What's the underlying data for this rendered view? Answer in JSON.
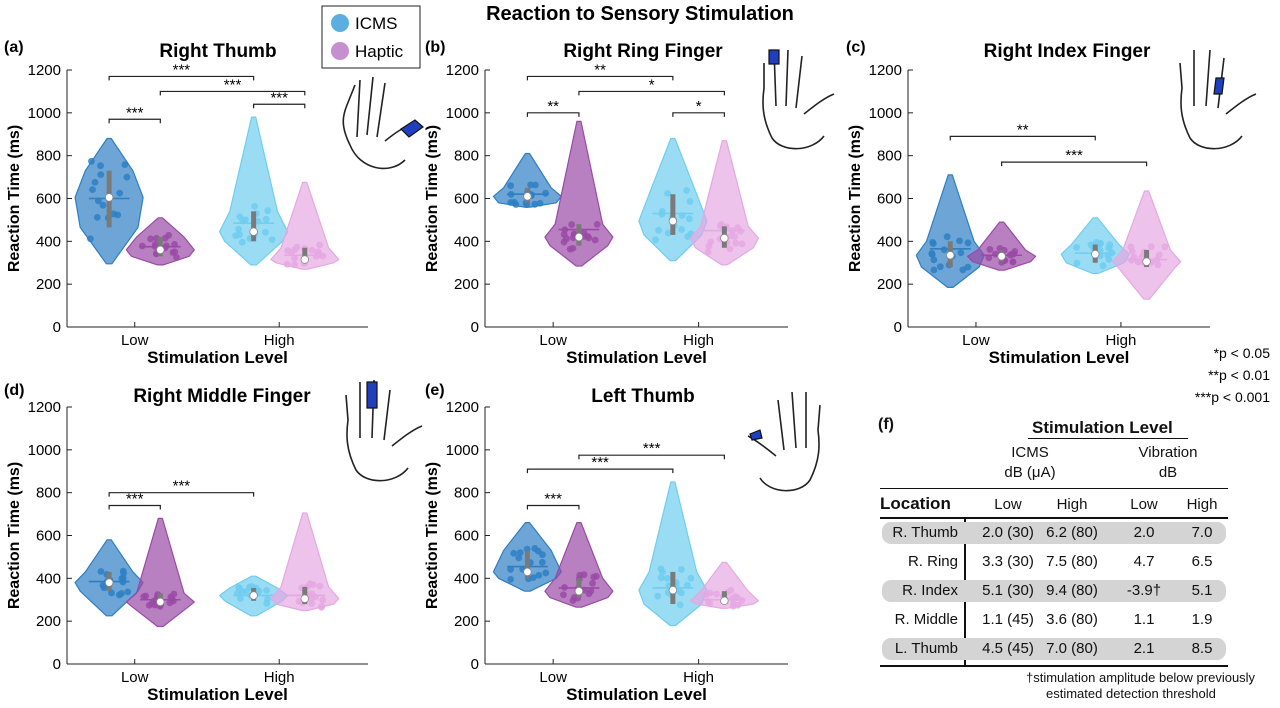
{
  "figure": {
    "title": "Reaction to Sensory Stimulation",
    "legend": [
      {
        "label": "ICMS",
        "color": "#5aaee0"
      },
      {
        "label": "Haptic",
        "color": "#c690d0"
      }
    ],
    "significance_key": [
      "*p < 0.05",
      "**p < 0.01",
      "***p < 0.001"
    ]
  },
  "colors": {
    "icms_low": "#2e7fc4",
    "icms_high": "#6fcdf0",
    "haptic_low": "#9a4aa6",
    "haptic_high": "#e5a8e3"
  },
  "chart_data": [
    {
      "type": "violin",
      "panel": "(a)",
      "title": "Right Thumb",
      "xlabel": "Stimulation Level",
      "ylabel": "Reaction Time (ms)",
      "categories": [
        "Low",
        "High"
      ],
      "ylim": [
        0,
        1200
      ],
      "yticks": [
        0,
        200,
        400,
        600,
        800,
        1000,
        1200
      ],
      "series": [
        {
          "name": "ICMS",
          "groups": [
            {
              "level": "Low",
              "min": 295,
              "q1": 465,
              "median": 605,
              "q3": 730,
              "max": 880,
              "mean": 600
            },
            {
              "level": "High",
              "min": 290,
              "q1": 400,
              "median": 445,
              "q3": 540,
              "max": 980,
              "mean": 485
            }
          ]
        },
        {
          "name": "Haptic",
          "groups": [
            {
              "level": "Low",
              "min": 290,
              "q1": 330,
              "median": 360,
              "q3": 420,
              "max": 510,
              "mean": 375
            },
            {
              "level": "High",
              "min": 270,
              "q1": 300,
              "median": 315,
              "q3": 370,
              "max": 675,
              "mean": 335
            }
          ]
        }
      ],
      "brackets": [
        {
          "from": "ICMS-Low",
          "to": "ICMS-High",
          "y": 1170,
          "label": "***"
        },
        {
          "from": "Haptic-Low",
          "to": "Haptic-High",
          "y": 1100,
          "label": "***"
        },
        {
          "from": "ICMS-Low",
          "to": "Haptic-Low",
          "y": 970,
          "label": "***"
        },
        {
          "from": "ICMS-High",
          "to": "Haptic-High",
          "y": 1040,
          "label": "***"
        }
      ]
    },
    {
      "type": "violin",
      "panel": "(b)",
      "title": "Right Ring Finger",
      "xlabel": "Stimulation Level",
      "ylabel": "Reaction Time (ms)",
      "categories": [
        "Low",
        "High"
      ],
      "ylim": [
        0,
        1200
      ],
      "yticks": [
        0,
        200,
        400,
        600,
        800,
        1000,
        1200
      ],
      "series": [
        {
          "name": "ICMS",
          "groups": [
            {
              "level": "Low",
              "min": 560,
              "q1": 580,
              "median": 610,
              "q3": 650,
              "max": 810,
              "mean": 620
            },
            {
              "level": "High",
              "min": 310,
              "q1": 430,
              "median": 495,
              "q3": 620,
              "max": 880,
              "mean": 530
            }
          ]
        },
        {
          "name": "Haptic",
          "groups": [
            {
              "level": "Low",
              "min": 285,
              "q1": 380,
              "median": 420,
              "q3": 480,
              "max": 960,
              "mean": 455
            },
            {
              "level": "High",
              "min": 290,
              "q1": 370,
              "median": 415,
              "q3": 470,
              "max": 870,
              "mean": 450
            }
          ]
        }
      ],
      "brackets": [
        {
          "from": "ICMS-Low",
          "to": "ICMS-High",
          "y": 1170,
          "label": "**"
        },
        {
          "from": "Haptic-Low",
          "to": "Haptic-High",
          "y": 1100,
          "label": "*"
        },
        {
          "from": "ICMS-Low",
          "to": "Haptic-Low",
          "y": 1000,
          "label": "**"
        },
        {
          "from": "ICMS-High",
          "to": "Haptic-High",
          "y": 1000,
          "label": "*"
        }
      ]
    },
    {
      "type": "violin",
      "panel": "(c)",
      "title": "Right Index Finger",
      "xlabel": "Stimulation Level",
      "ylabel": "Reaction Time (ms)",
      "categories": [
        "Low",
        "High"
      ],
      "ylim": [
        0,
        1200
      ],
      "yticks": [
        0,
        200,
        400,
        600,
        800,
        1000,
        1200
      ],
      "series": [
        {
          "name": "ICMS",
          "groups": [
            {
              "level": "Low",
              "min": 185,
              "q1": 280,
              "median": 335,
              "q3": 400,
              "max": 710,
              "mean": 365
            },
            {
              "level": "High",
              "min": 250,
              "q1": 300,
              "median": 340,
              "q3": 385,
              "max": 510,
              "mean": 345
            }
          ]
        },
        {
          "name": "Haptic",
          "groups": [
            {
              "level": "Low",
              "min": 265,
              "q1": 305,
              "median": 330,
              "q3": 360,
              "max": 490,
              "mean": 335
            },
            {
              "level": "High",
              "min": 130,
              "q1": 280,
              "median": 305,
              "q3": 360,
              "max": 635,
              "mean": 315
            }
          ]
        }
      ],
      "brackets": [
        {
          "from": "ICMS-Low",
          "to": "ICMS-High",
          "y": 890,
          "label": "**"
        },
        {
          "from": "Haptic-Low",
          "to": "Haptic-High",
          "y": 770,
          "label": "***"
        }
      ]
    },
    {
      "type": "violin",
      "panel": "(d)",
      "title": "Right Middle Finger",
      "xlabel": "Stimulation Level",
      "ylabel": "Reaction Time (ms)",
      "categories": [
        "Low",
        "High"
      ],
      "ylim": [
        0,
        1200
      ],
      "yticks": [
        0,
        200,
        400,
        600,
        800,
        1000,
        1200
      ],
      "series": [
        {
          "name": "ICMS",
          "groups": [
            {
              "level": "Low",
              "min": 225,
              "q1": 340,
              "median": 380,
              "q3": 430,
              "max": 580,
              "mean": 385
            },
            {
              "level": "High",
              "min": 225,
              "q1": 295,
              "median": 320,
              "q3": 355,
              "max": 410,
              "mean": 320
            }
          ]
        },
        {
          "name": "Haptic",
          "groups": [
            {
              "level": "Low",
              "min": 175,
              "q1": 270,
              "median": 290,
              "q3": 330,
              "max": 680,
              "mean": 300
            },
            {
              "level": "High",
              "min": 250,
              "q1": 280,
              "median": 305,
              "q3": 360,
              "max": 705,
              "mean": 320
            }
          ]
        }
      ],
      "brackets": [
        {
          "from": "ICMS-Low",
          "to": "ICMS-High",
          "y": 800,
          "label": "***"
        },
        {
          "from": "ICMS-Low",
          "to": "Haptic-Low",
          "y": 740,
          "label": "***"
        }
      ]
    },
    {
      "type": "violin",
      "panel": "(e)",
      "title": "Left Thumb",
      "xlabel": "Stimulation Level",
      "ylabel": "Reaction Time (ms)",
      "categories": [
        "Low",
        "High"
      ],
      "ylim": [
        0,
        1200
      ],
      "yticks": [
        0,
        200,
        400,
        600,
        800,
        1000,
        1200
      ],
      "series": [
        {
          "name": "ICMS",
          "groups": [
            {
              "level": "Low",
              "min": 340,
              "q1": 400,
              "median": 430,
              "q3": 530,
              "max": 660,
              "mean": 455
            },
            {
              "level": "High",
              "min": 180,
              "q1": 280,
              "median": 345,
              "q3": 430,
              "max": 850,
              "mean": 355
            }
          ]
        },
        {
          "name": "Haptic",
          "groups": [
            {
              "level": "Low",
              "min": 265,
              "q1": 310,
              "median": 340,
              "q3": 400,
              "max": 660,
              "mean": 355
            },
            {
              "level": "High",
              "min": 260,
              "q1": 280,
              "median": 295,
              "q3": 340,
              "max": 475,
              "mean": 300
            }
          ]
        }
      ],
      "brackets": [
        {
          "from": "Haptic-Low",
          "to": "Haptic-High",
          "y": 975,
          "label": "***"
        },
        {
          "from": "ICMS-Low",
          "to": "ICMS-High",
          "y": 910,
          "label": "***"
        },
        {
          "from": "ICMS-Low",
          "to": "Haptic-Low",
          "y": 740,
          "label": "***"
        }
      ]
    },
    {
      "type": "table",
      "panel": "(f)",
      "group_header": "Stimulation Level",
      "column_groups": [
        {
          "line1": "ICMS",
          "line2": "dB (μA)"
        },
        {
          "line1": "Vibration",
          "line2": "dB"
        }
      ],
      "row_header": "Location",
      "columns": [
        "Low",
        "High",
        "Low",
        "High"
      ],
      "rows": [
        {
          "location": "R. Thumb",
          "values": [
            "2.0 (30)",
            "6.2 (80)",
            "2.0",
            "7.0"
          ],
          "shaded": true
        },
        {
          "location": "R. Ring",
          "values": [
            "3.3 (30)",
            "7.5 (80)",
            "4.7",
            "6.5"
          ],
          "shaded": false
        },
        {
          "location": "R. Index",
          "values": [
            "5.1 (30)",
            "9.4 (80)",
            "-3.9†",
            "5.1"
          ],
          "shaded": true
        },
        {
          "location": "R. Middle",
          "values": [
            "1.1 (45)",
            "3.6 (80)",
            "1.1",
            "1.9"
          ],
          "shaded": false
        },
        {
          "location": "L. Thumb",
          "values": [
            "4.5 (45)",
            "7.0 (80)",
            "2.1",
            "8.5"
          ],
          "shaded": true
        }
      ],
      "footnote_line1": "†stimulation amplitude below previously",
      "footnote_line2": "estimated detection threshold"
    }
  ]
}
